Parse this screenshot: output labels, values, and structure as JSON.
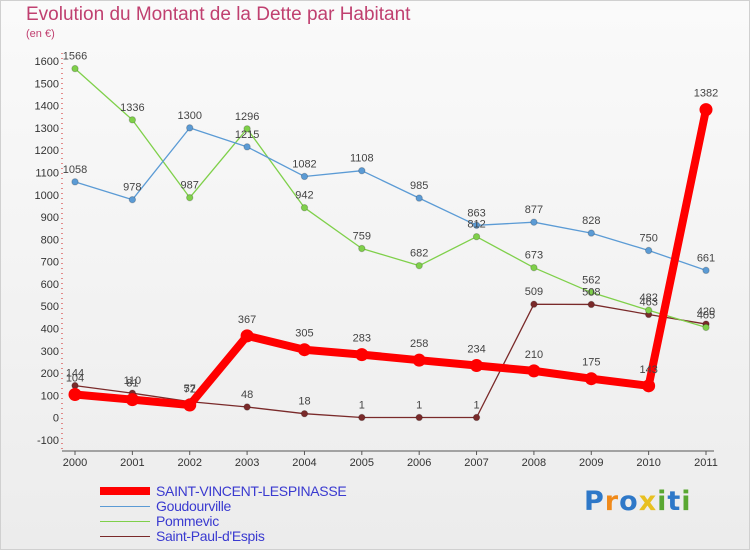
{
  "chart_data": {
    "type": "line",
    "title": "Evolution du Montant de la Dette par Habitant",
    "subtitle": "(en €)",
    "x": [
      "2000",
      "2001",
      "2002",
      "2003",
      "2004",
      "2005",
      "2006",
      "2007",
      "2008",
      "2009",
      "2010",
      "2011"
    ],
    "ylim": [
      -100,
      1600
    ],
    "yticks": [
      -100,
      0,
      100,
      200,
      300,
      400,
      500,
      600,
      700,
      800,
      900,
      1000,
      1100,
      1200,
      1300,
      1400,
      1500,
      1600
    ],
    "grid": false,
    "legend_position": "bottom-left",
    "series": [
      {
        "name": "SAINT-VINCENT-LESPINASSE",
        "color": "#ff0000",
        "values": [
          104,
          81,
          57,
          367,
          305,
          283,
          258,
          234,
          210,
          175,
          143,
          1382
        ]
      },
      {
        "name": "Goudourville",
        "color": "#5b9bd5",
        "values": [
          1058,
          978,
          1300,
          1215,
          1082,
          1108,
          985,
          863,
          877,
          828,
          750,
          661
        ]
      },
      {
        "name": "Pommevic",
        "color": "#7fd04a",
        "values": [
          1566,
          1336,
          987,
          1296,
          942,
          759,
          682,
          812,
          673,
          562,
          482,
          405
        ]
      },
      {
        "name": "Saint-Paul-d'Espis",
        "color": "#7a2a2a",
        "values": [
          144,
          110,
          72,
          48,
          18,
          1,
          1,
          1,
          509,
          508,
          463,
          420
        ]
      }
    ]
  },
  "logo": {
    "text": "Proxiti",
    "letters": [
      "P",
      "r",
      "o",
      "x",
      "i",
      "t",
      "i"
    ],
    "colors": [
      "#2e78c8",
      "#f08a1a",
      "#2e78c8",
      "#e8c020",
      "#5aa832",
      "#2e78c8",
      "#5aa832"
    ]
  }
}
